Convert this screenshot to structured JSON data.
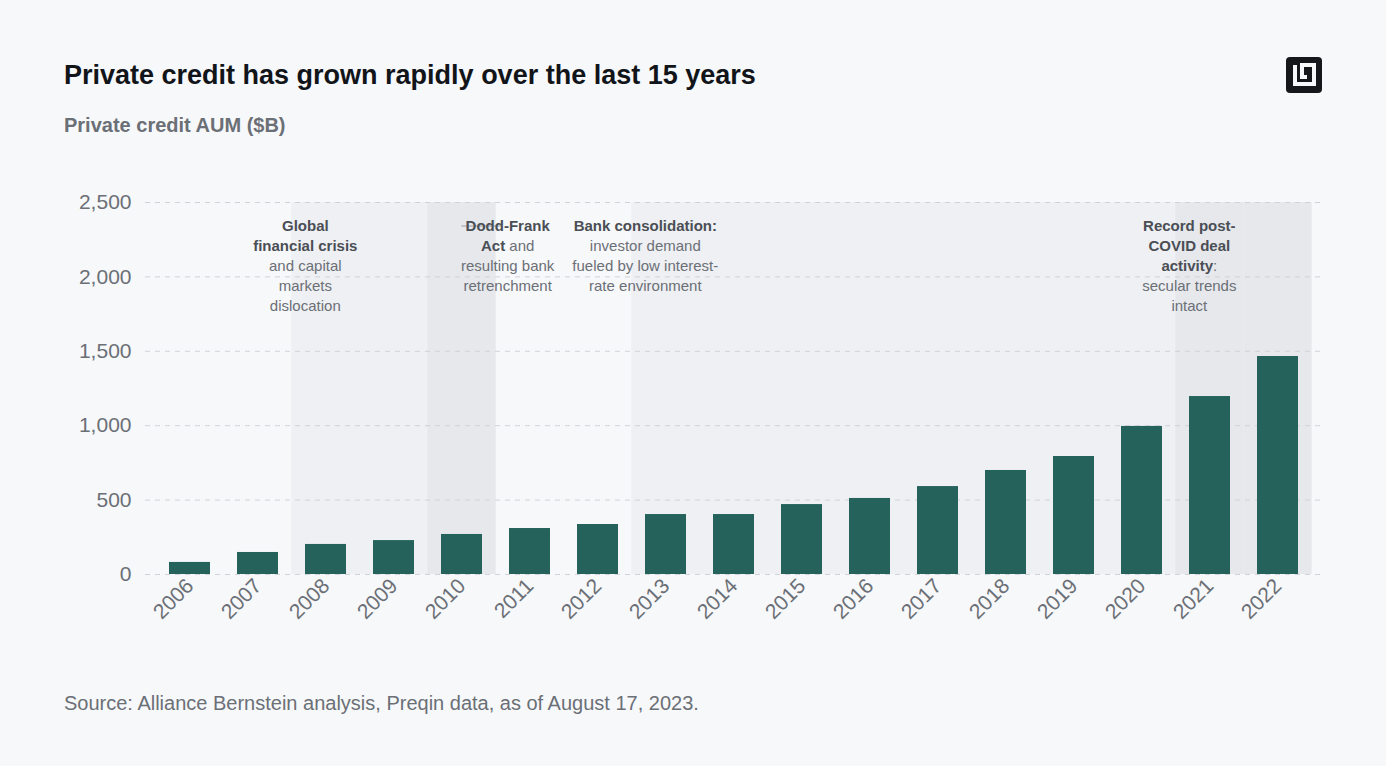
{
  "chart_data": {
    "type": "bar",
    "title": "Private credit has grown rapidly over the last 15 years",
    "subtitle": "Private credit AUM ($B)",
    "source": "Source: Alliance Bernstein analysis, Preqin data, as of August 17, 2023.",
    "categories": [
      "2006",
      "2007",
      "2008",
      "2009",
      "2010",
      "2011",
      "2012",
      "2013",
      "2014",
      "2015",
      "2016",
      "2017",
      "2018",
      "2019",
      "2020",
      "2021",
      "2022"
    ],
    "values": [
      81,
      148,
      202,
      228,
      269,
      309,
      336,
      403,
      403,
      470,
      511,
      591,
      699,
      793,
      995,
      1196,
      1465
    ],
    "color": "#24625b",
    "ylim": [
      0,
      2500
    ],
    "yticks": [
      0,
      500,
      {
        "value": 1000,
        "label": "1,000"
      },
      {
        "value": 1500,
        "label": "1,500"
      },
      {
        "value": 2000,
        "label": "2,000"
      },
      {
        "value": 2500,
        "label": "2,500"
      }
    ],
    "grid": true,
    "annotations": [
      {
        "categories": [
          "2008",
          "2009"
        ],
        "color": "#eef0f3",
        "lines": [
          [
            {
              "text": "Global",
              "bold": true
            }
          ],
          [
            {
              "text": "financial crisis",
              "bold": true
            }
          ],
          [
            {
              "text": "and capital",
              "bold": false
            }
          ],
          [
            {
              "text": "markets",
              "bold": false
            }
          ],
          [
            {
              "text": "dislocation",
              "bold": false
            }
          ]
        ]
      },
      {
        "categories": [
          "2010"
        ],
        "color": "#e6e8ec",
        "lines": [
          [
            {
              "text": "Dodd-Frank",
              "bold": true
            }
          ],
          [
            {
              "text": "Act",
              "bold": true
            },
            {
              "text": " and",
              "bold": false
            }
          ],
          [
            {
              "text": "resulting bank",
              "bold": false
            }
          ],
          [
            {
              "text": "retrenchment",
              "bold": false
            }
          ]
        ]
      },
      {
        "categories": [
          "2013",
          "2014",
          "2015",
          "2016",
          "2017",
          "2018",
          "2019",
          "2020"
        ],
        "color": "#eef0f3",
        "lines": [
          [
            {
              "text": "Bank consolidation:",
              "bold": true
            }
          ],
          [
            {
              "text": "investor demand",
              "bold": false
            }
          ],
          [
            {
              "text": "fueled by low interest-",
              "bold": false
            }
          ],
          [
            {
              "text": "rate environment",
              "bold": false
            }
          ]
        ]
      },
      {
        "categories": [
          "2021",
          "2022"
        ],
        "color": "#e6e8ec",
        "lines": [
          [
            {
              "text": "Record post-",
              "bold": true
            }
          ],
          [
            {
              "text": "COVID deal",
              "bold": true
            }
          ],
          [
            {
              "text": "activity",
              "bold": true
            },
            {
              "text": ":",
              "bold": false
            }
          ],
          [
            {
              "text": "secular trends",
              "bold": false
            }
          ],
          [
            {
              "text": "intact",
              "bold": false
            }
          ]
        ]
      }
    ]
  }
}
